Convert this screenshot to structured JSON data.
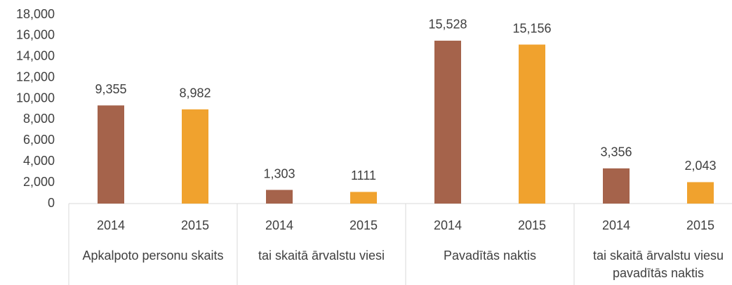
{
  "chart_data": {
    "type": "bar",
    "categories": [
      "2014",
      "2015",
      "2014",
      "2015",
      "2014",
      "2015",
      "2014",
      "2015"
    ],
    "groups": [
      {
        "label": "Apkalpoto personu skaits",
        "size": 2
      },
      {
        "label": "tai skaitā ārvalstu viesi",
        "size": 2
      },
      {
        "label": "Pavadītās naktis",
        "size": 2
      },
      {
        "label": "tai skaitā ārvalstu viesu pavadītās naktis",
        "size": 2
      }
    ],
    "values": [
      9355,
      8982,
      1303,
      1111,
      15528,
      15156,
      3356,
      2043
    ],
    "value_labels": [
      "9,355",
      "8,982",
      "1,303",
      "1111",
      "15,528",
      "15,156",
      "3,356",
      "2,043"
    ],
    "colors": [
      "#a5634b",
      "#f0a22e",
      "#a5634b",
      "#f0a22e",
      "#a5634b",
      "#f0a22e",
      "#a5634b",
      "#f0a22e"
    ],
    "ylim": [
      0,
      18000
    ],
    "yticks": [
      0,
      {
        "value": 2000,
        "label": "2,000"
      },
      {
        "value": 4000,
        "label": "4,000"
      },
      {
        "value": 6000,
        "label": "6,000"
      },
      {
        "value": 8000,
        "label": "8,000"
      },
      {
        "value": 10000,
        "label": "10,000"
      },
      {
        "value": 12000,
        "label": "12,000"
      },
      {
        "value": 14000,
        "label": "14,000"
      },
      {
        "value": 16000,
        "label": "16,000"
      },
      {
        "value": 18000,
        "label": "18,000"
      }
    ],
    "grid": false
  }
}
